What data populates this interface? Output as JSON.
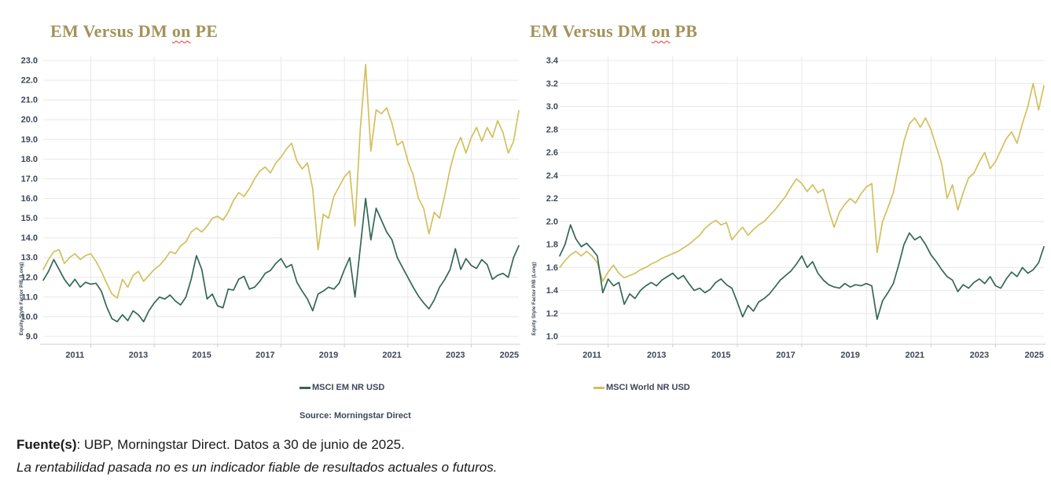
{
  "colors": {
    "background": "#ffffff",
    "em_line": "#336759",
    "world_line": "#d2c05e",
    "title_text": "#a3925a",
    "spellcheck_squiggle": "#e03c31",
    "tick_text": "#3d4759",
    "gridline": "#e8e8e8",
    "axis_line": "#cfcfcf",
    "footer_text": "#1a1a1a"
  },
  "titles": {
    "left": {
      "pre": "EM Versus DM ",
      "squiggle_word": "on",
      "post": " PE"
    },
    "right": {
      "pre": "EM Versus DM ",
      "squiggle_word": "on",
      "post": " PB"
    }
  },
  "legend": {
    "em": {
      "label": "MSCI EM NR USD",
      "color": "#336759"
    },
    "world": {
      "label": "MSCI World NR USD",
      "color": "#d2c05e"
    }
  },
  "source_note": "Source: Morningstar Direct",
  "footer": {
    "sources_bold": "Fuente(s)",
    "sources_rest": ": UBP, Morningstar Direct. Datos a 30 de junio de 2025.",
    "disclaimer": "La rentabilidad pasada no es un indicador fiable de resultados actuales o futuros."
  },
  "chart_data": [
    {
      "type": "line",
      "title": "EM Versus DM on PE",
      "ylabel": "Equity Style Factor P/E (Long)",
      "xlabel": "",
      "grid": true,
      "legend_position": "bottom",
      "ylim": [
        9.0,
        23.0
      ],
      "y_tick_labels": [
        "23.0",
        "22.0",
        "21.0",
        "20.0",
        "19.0",
        "18.0",
        "17.0",
        "16.0",
        "15.0",
        "14.0",
        "13.0",
        "12.0",
        "11.0",
        "10.0",
        "9.0"
      ],
      "x_tick_labels": [
        "2011",
        "2013",
        "2015",
        "2017",
        "2019",
        "2021",
        "2023",
        "2025"
      ],
      "grid_years": [
        2012,
        2014,
        2016,
        2018,
        2020,
        2022,
        2024
      ],
      "x_start": 2010.5,
      "x_end": 2025.5,
      "x_step_years": 0.1667,
      "series": [
        {
          "name": "MSCI World NR USD",
          "color": "#d2c05e",
          "values": [
            12.4,
            12.9,
            13.3,
            13.4,
            12.7,
            13.0,
            13.2,
            12.9,
            13.1,
            13.2,
            12.8,
            12.3,
            11.7,
            11.15,
            10.95,
            11.9,
            11.5,
            12.1,
            12.3,
            11.8,
            12.1,
            12.4,
            12.6,
            12.9,
            13.3,
            13.2,
            13.6,
            13.8,
            14.3,
            14.5,
            14.3,
            14.6,
            15.0,
            15.1,
            14.9,
            15.3,
            15.9,
            16.3,
            16.1,
            16.5,
            17.0,
            17.4,
            17.6,
            17.3,
            17.8,
            18.1,
            18.5,
            18.8,
            17.9,
            17.5,
            17.8,
            16.5,
            13.4,
            15.2,
            15.0,
            16.1,
            16.6,
            17.1,
            17.4,
            14.6,
            19.5,
            22.8,
            18.4,
            20.5,
            20.3,
            20.6,
            19.8,
            18.7,
            18.9,
            17.9,
            17.2,
            16.0,
            15.5,
            14.2,
            15.3,
            15.0,
            16.2,
            17.5,
            18.5,
            19.1,
            18.3,
            19.1,
            19.6,
            18.9,
            19.6,
            19.1,
            19.95,
            19.35,
            18.3,
            18.9,
            20.45
          ]
        },
        {
          "name": "MSCI EM NR USD",
          "color": "#336759",
          "values": [
            11.85,
            12.3,
            12.9,
            12.4,
            11.9,
            11.55,
            11.9,
            11.5,
            11.75,
            11.65,
            11.7,
            11.3,
            10.5,
            9.9,
            9.75,
            10.1,
            9.8,
            10.3,
            10.1,
            9.75,
            10.3,
            10.7,
            11.0,
            10.9,
            11.1,
            10.8,
            10.6,
            11.0,
            11.9,
            13.1,
            12.4,
            10.9,
            11.15,
            10.55,
            10.45,
            11.4,
            11.35,
            11.9,
            12.05,
            11.4,
            11.5,
            11.8,
            12.2,
            12.35,
            12.7,
            12.95,
            12.5,
            12.65,
            11.75,
            11.3,
            10.9,
            10.3,
            11.15,
            11.3,
            11.5,
            11.4,
            11.7,
            12.4,
            13.0,
            11.0,
            13.5,
            16.0,
            13.9,
            15.5,
            14.9,
            14.3,
            13.9,
            13.0,
            12.5,
            12.0,
            11.5,
            11.05,
            10.7,
            10.4,
            10.85,
            11.5,
            11.9,
            12.4,
            13.45,
            12.4,
            12.95,
            12.6,
            12.45,
            12.9,
            12.65,
            11.9,
            12.1,
            12.2,
            12.0,
            13.0,
            13.6
          ]
        }
      ]
    },
    {
      "type": "line",
      "title": "EM Versus DM on PB",
      "ylabel": "Equity Style Factor P/B (Long)",
      "xlabel": "",
      "grid": true,
      "legend_position": "bottom",
      "ylim": [
        1.0,
        3.4
      ],
      "y_tick_labels": [
        "3.4",
        "3.2",
        "3.0",
        "2.8",
        "2.6",
        "2.4",
        "2.2",
        "2.0",
        "1.8",
        "1.6",
        "1.4",
        "1.2",
        "1.0"
      ],
      "x_tick_labels": [
        "2011",
        "2013",
        "2015",
        "2017",
        "2019",
        "2021",
        "2023",
        "2025"
      ],
      "grid_years": [
        2012,
        2014,
        2016,
        2018,
        2020,
        2022,
        2024
      ],
      "x_start": 2010.5,
      "x_end": 2025.5,
      "x_step_years": 0.1667,
      "series": [
        {
          "name": "MSCI World NR USD",
          "color": "#d2c05e",
          "values": [
            1.6,
            1.66,
            1.71,
            1.74,
            1.7,
            1.74,
            1.7,
            1.64,
            1.48,
            1.56,
            1.62,
            1.55,
            1.51,
            1.53,
            1.55,
            1.58,
            1.6,
            1.63,
            1.65,
            1.68,
            1.7,
            1.72,
            1.74,
            1.77,
            1.8,
            1.84,
            1.88,
            1.94,
            1.98,
            2.01,
            1.97,
            1.99,
            1.84,
            1.9,
            1.95,
            1.88,
            1.93,
            1.97,
            2.0,
            2.05,
            2.1,
            2.16,
            2.22,
            2.3,
            2.37,
            2.33,
            2.26,
            2.32,
            2.25,
            2.28,
            2.1,
            1.95,
            2.08,
            2.15,
            2.2,
            2.16,
            2.24,
            2.3,
            2.33,
            1.73,
            2.0,
            2.12,
            2.25,
            2.48,
            2.7,
            2.85,
            2.9,
            2.82,
            2.9,
            2.8,
            2.65,
            2.5,
            2.2,
            2.32,
            2.1,
            2.25,
            2.38,
            2.42,
            2.52,
            2.6,
            2.46,
            2.52,
            2.62,
            2.72,
            2.78,
            2.68,
            2.85,
            3.0,
            3.2,
            2.97,
            3.18
          ]
        },
        {
          "name": "MSCI EM NR USD",
          "color": "#336759",
          "values": [
            1.7,
            1.8,
            1.97,
            1.85,
            1.78,
            1.81,
            1.76,
            1.7,
            1.38,
            1.5,
            1.44,
            1.47,
            1.28,
            1.37,
            1.33,
            1.4,
            1.44,
            1.47,
            1.44,
            1.49,
            1.52,
            1.55,
            1.5,
            1.53,
            1.46,
            1.4,
            1.42,
            1.38,
            1.41,
            1.47,
            1.5,
            1.45,
            1.42,
            1.3,
            1.17,
            1.27,
            1.22,
            1.3,
            1.33,
            1.37,
            1.43,
            1.49,
            1.53,
            1.57,
            1.63,
            1.7,
            1.6,
            1.65,
            1.55,
            1.49,
            1.45,
            1.43,
            1.42,
            1.46,
            1.43,
            1.45,
            1.44,
            1.46,
            1.44,
            1.15,
            1.31,
            1.38,
            1.46,
            1.62,
            1.8,
            1.9,
            1.84,
            1.87,
            1.8,
            1.71,
            1.65,
            1.58,
            1.52,
            1.49,
            1.39,
            1.45,
            1.42,
            1.47,
            1.5,
            1.46,
            1.52,
            1.44,
            1.42,
            1.5,
            1.56,
            1.52,
            1.6,
            1.55,
            1.58,
            1.64,
            1.78
          ]
        }
      ]
    }
  ]
}
